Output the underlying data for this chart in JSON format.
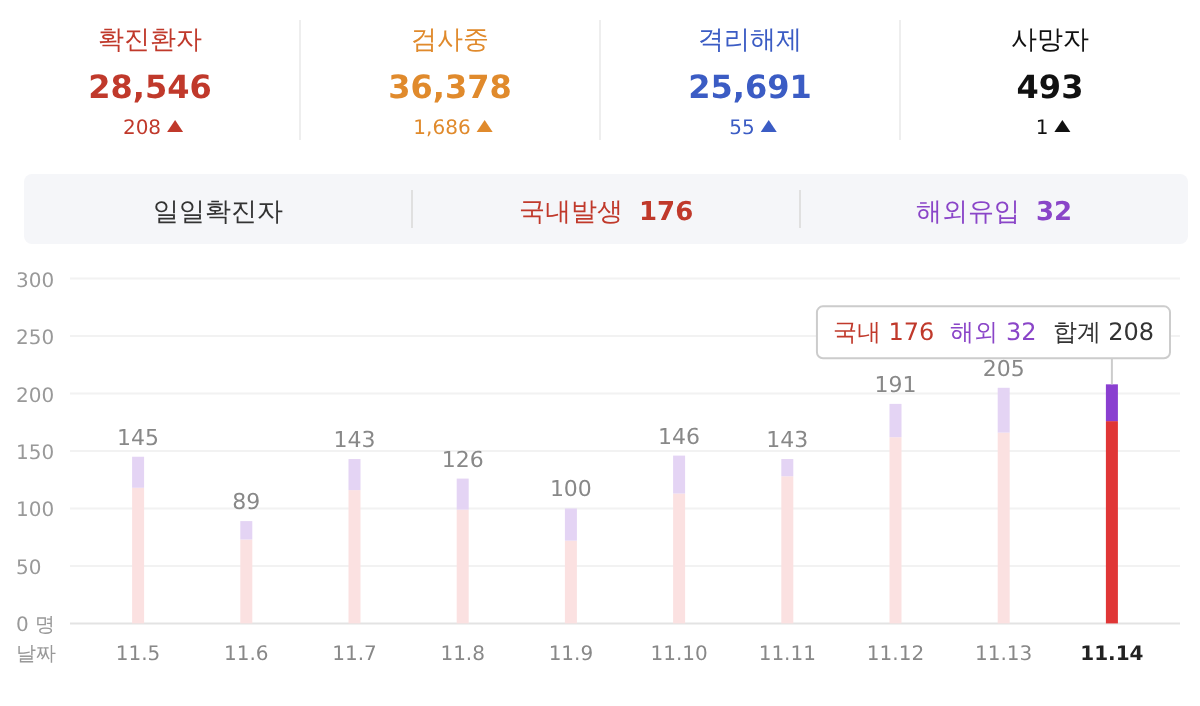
{
  "chart_data": [
    {
      "type": "other",
      "annotations": [
        "확진환자",
        "검사중",
        "격리해제",
        "사망자",
        "28,546",
        "36,378",
        "25,691",
        "493",
        "208",
        "1,686",
        "55",
        "1"
      ]
    },
    {
      "type": "other",
      "annotations": [
        "일일확진자",
        "국내발생 176",
        "해외유입 32"
      ]
    },
    {
      "type": "bar",
      "stacked": true,
      "xlabel": "날짜",
      "categories": [
        "11.5",
        "11.6",
        "11.7",
        "11.8",
        "11.9",
        "11.10",
        "11.11",
        "11.12",
        "11.13",
        "11.14"
      ],
      "series": [
        {
          "color": "#c0392b",
          "colors": [
            "#fbe1e1",
            "#fbe1e1",
            "#fbe1e1",
            "#fbe1e1",
            "#fbe1e1",
            "#fbe1e1",
            "#fbe1e1",
            "#fbe1e1",
            "#fbe1e1",
            "#e03636"
          ],
          "values": [
            118,
            73,
            116,
            99,
            72,
            113,
            128,
            162,
            166,
            176
          ]
        },
        {
          "color": "#8a45c8",
          "colors": [
            "#e4d4f4",
            "#e4d4f4",
            "#e4d4f4",
            "#e4d4f4",
            "#e4d4f4",
            "#e4d4f4",
            "#e4d4f4",
            "#e4d4f4",
            "#e4d4f4",
            "#8a3fd0"
          ],
          "values": [
            27,
            16,
            27,
            27,
            28,
            33,
            15,
            29,
            39,
            32
          ]
        }
      ],
      "totals": [
        "145",
        "89",
        "143",
        "126",
        "100",
        "146",
        "143",
        "191",
        "205",
        null
      ],
      "annotations": [
        "국내 176",
        "해외 32",
        {
          "text": "합계 208",
          "x": "11.14",
          "y": 208
        }
      ],
      "ylim": [
        0,
        300
      ],
      "yticks": [
        {
          "value": 0,
          "label": "0 명"
        },
        50,
        100,
        150,
        200,
        250,
        300
      ],
      "grid": "y"
    }
  ]
}
